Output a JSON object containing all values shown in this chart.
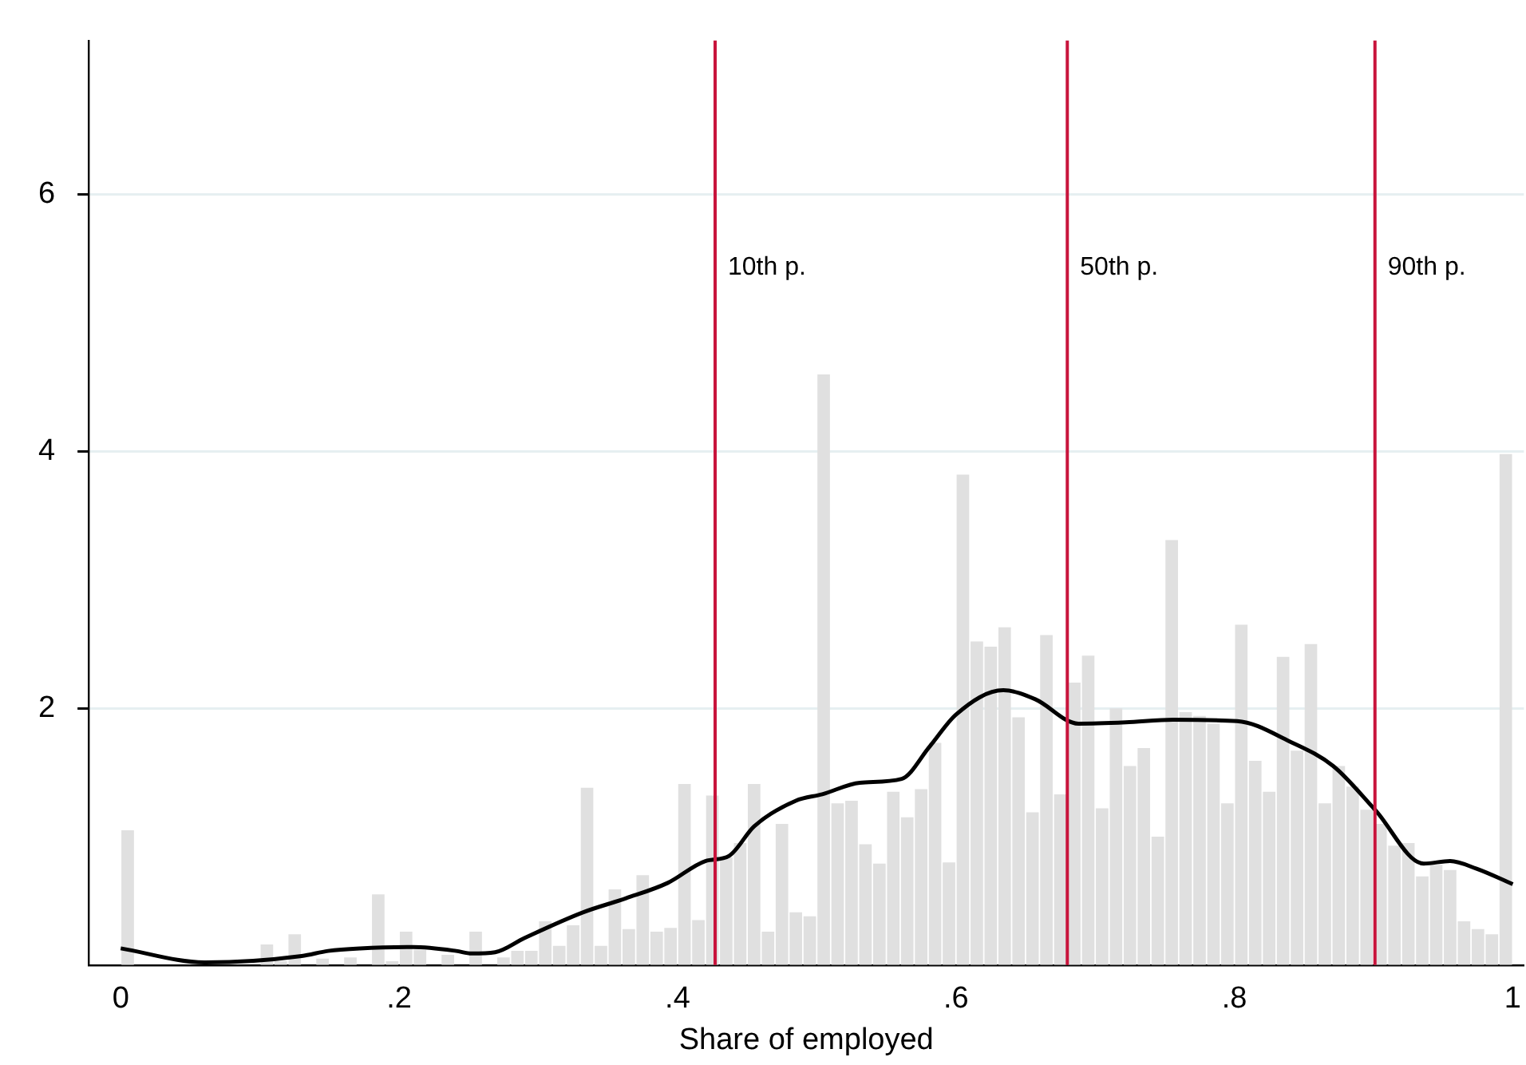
{
  "chart_data": {
    "type": "histogram",
    "xlabel": "Share of employed",
    "bins": [
      0,
      0.01,
      0.02,
      0.03,
      0.04,
      0.05,
      0.06,
      0.07,
      0.08,
      0.09,
      0.1,
      0.11,
      0.12,
      0.13,
      0.14,
      0.15,
      0.16,
      0.17,
      0.18,
      0.19,
      0.2,
      0.21,
      0.22,
      0.23,
      0.24,
      0.25,
      0.26,
      0.27,
      0.28,
      0.29,
      0.3,
      0.31,
      0.32,
      0.33,
      0.34,
      0.35,
      0.36,
      0.37,
      0.38,
      0.39,
      0.4,
      0.41,
      0.42,
      0.43,
      0.44,
      0.45,
      0.46,
      0.47,
      0.48,
      0.49,
      0.5,
      0.51,
      0.52,
      0.53,
      0.54,
      0.55,
      0.56,
      0.57,
      0.58,
      0.59,
      0.6,
      0.61,
      0.62,
      0.63,
      0.64,
      0.65,
      0.66,
      0.67,
      0.68,
      0.69,
      0.7,
      0.71,
      0.72,
      0.73,
      0.74,
      0.75,
      0.76,
      0.77,
      0.78,
      0.79,
      0.8,
      0.81,
      0.82,
      0.83,
      0.84,
      0.85,
      0.86,
      0.87,
      0.88,
      0.89,
      0.9,
      0.91,
      0.92,
      0.93,
      0.94,
      0.95,
      0.96,
      0.97,
      0.98,
      0.99,
      1
    ],
    "values": [
      1.05,
      0,
      0,
      0,
      0,
      0,
      0,
      0,
      0,
      0,
      0.16,
      0.03,
      0.24,
      0,
      0.05,
      0,
      0.06,
      0,
      0.55,
      0.03,
      0.26,
      0.12,
      0,
      0.08,
      0,
      0.26,
      0,
      0.06,
      0.11,
      0.11,
      0.34,
      0.15,
      0.31,
      1.38,
      0.15,
      0.59,
      0.28,
      0.7,
      0.26,
      0.29,
      1.41,
      0.35,
      1.32,
      0.84,
      0.95,
      1.41,
      0.26,
      1.1,
      0.41,
      0.38,
      4.6,
      1.26,
      1.28,
      0.94,
      0.79,
      1.35,
      1.15,
      1.37,
      1.73,
      0.8,
      3.82,
      2.52,
      2.48,
      2.63,
      1.93,
      1.19,
      2.57,
      1.33,
      2.2,
      2.41,
      1.22,
      2,
      1.55,
      1.69,
      1,
      3.31,
      1.97,
      1.94,
      1.88,
      1.26,
      2.65,
      1.59,
      1.35,
      2.4,
      1.67,
      2.5,
      1.26,
      1.55,
      1.39,
      1.21,
      1.1,
      0.93,
      0.95,
      0.69,
      0.78,
      0.74,
      0.34,
      0.28,
      0.24,
      3.98
    ],
    "color": "#e0e0e0",
    "series": [
      {
        "type": "line",
        "color": "#000000",
        "x": [
          0,
          0.061,
          0.13,
          0.149,
          0.172,
          0.21,
          0.241,
          0.252,
          0.269,
          0.29,
          0.332,
          0.363,
          0.393,
          0.42,
          0.437,
          0.455,
          0.485,
          0.504,
          0.531,
          0.561,
          0.581,
          0.6,
          0.634,
          0.657,
          0.688,
          0.722,
          0.756,
          0.802,
          0.84,
          0.871,
          0.901,
          0.936,
          0.955,
          0.974,
          1
        ],
        "values": [
          0.13,
          0.02,
          0.07,
          0.11,
          0.13,
          0.14,
          0.11,
          0.09,
          0.1,
          0.21,
          0.41,
          0.52,
          0.64,
          0.81,
          0.85,
          1.08,
          1.28,
          1.33,
          1.42,
          1.45,
          1.7,
          1.95,
          2.14,
          2.07,
          1.88,
          1.89,
          1.91,
          1.9,
          1.74,
          1.55,
          1.21,
          0.79,
          0.81,
          0.75,
          0.63
        ]
      }
    ],
    "ref_lines": [
      {
        "axis": "x",
        "value": 0.427,
        "label": "10th p.",
        "color": "#c8143c"
      },
      {
        "axis": "x",
        "value": 0.68,
        "label": "50th p.",
        "color": "#c8143c"
      },
      {
        "axis": "x",
        "value": 0.901,
        "label": "90th p.",
        "color": "#c8143c"
      }
    ],
    "xlim": [
      -0.023,
      1.008
    ],
    "ylim": [
      0,
      7.2
    ],
    "xticks": [
      0,
      {
        "value": 0.2,
        "label": ".2"
      },
      {
        "value": 0.4,
        "label": ".4"
      },
      {
        "value": 0.6,
        "label": ".6"
      },
      {
        "value": 0.8,
        "label": ".8"
      },
      1
    ],
    "yticks": [
      2,
      4,
      6
    ],
    "grid": "y",
    "legend": false
  }
}
